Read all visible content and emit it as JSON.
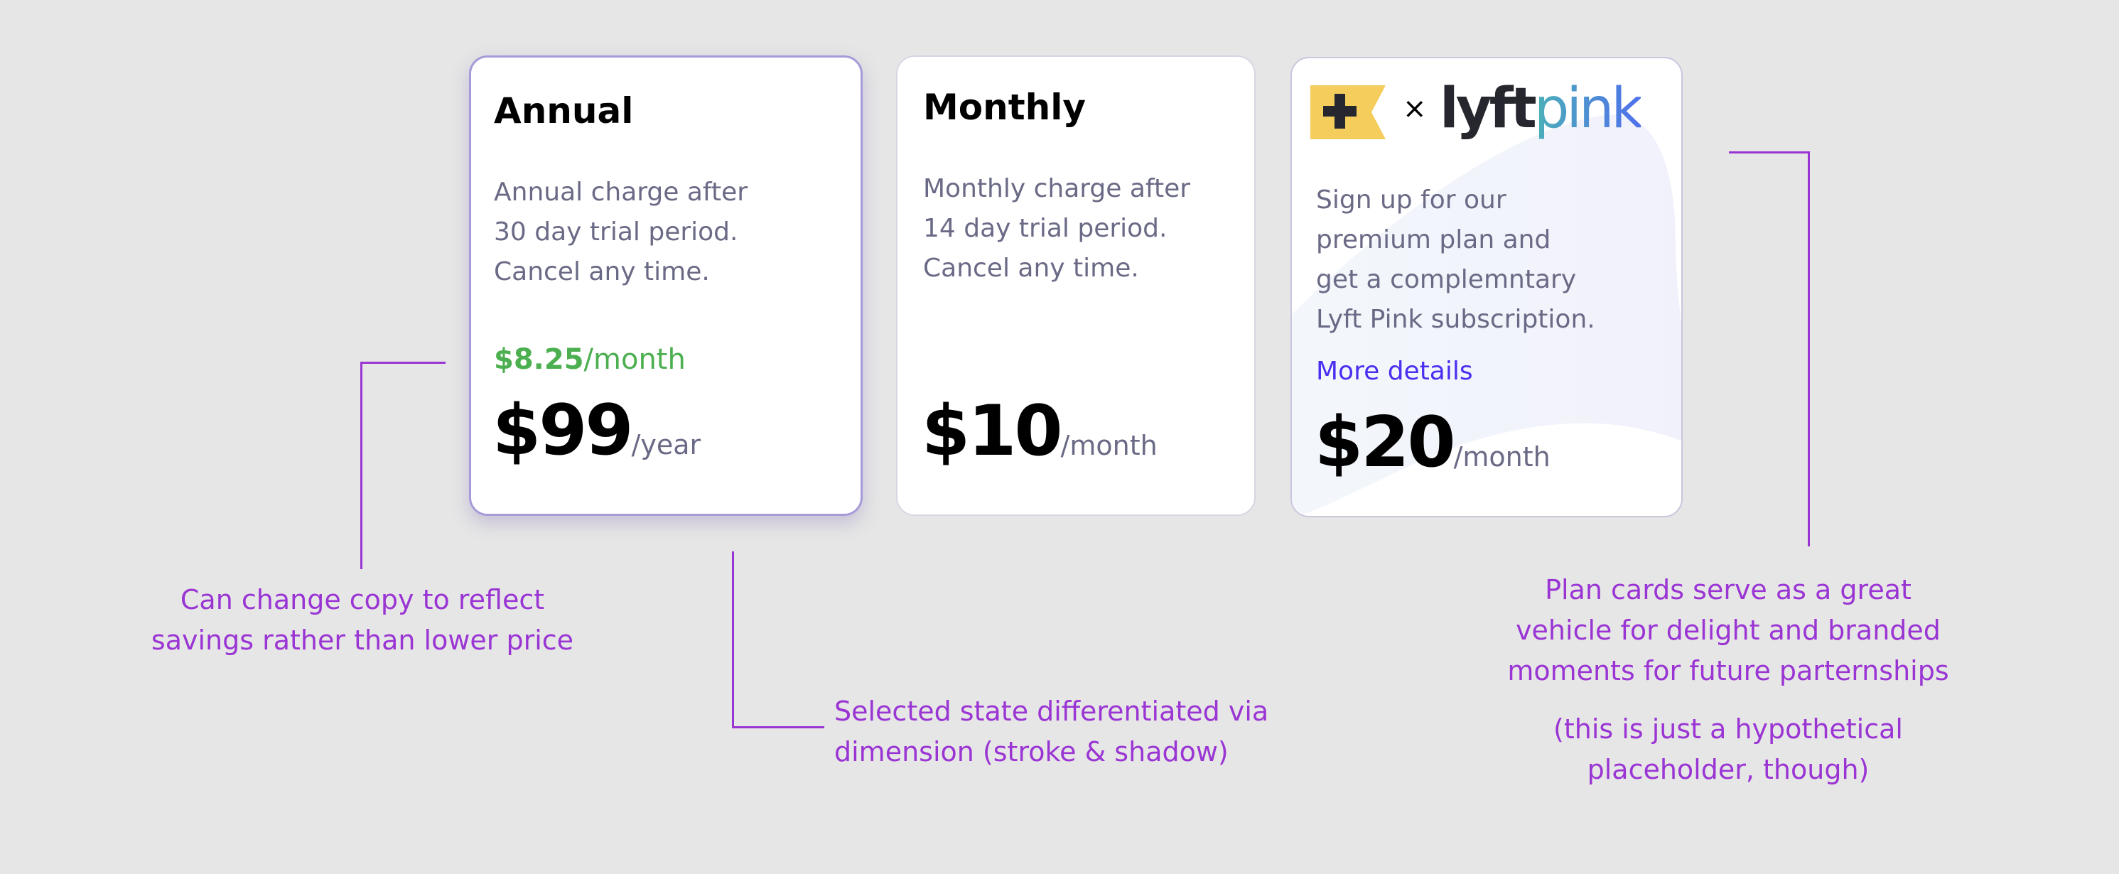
{
  "plans": [
    {
      "title": "Annual",
      "description": "Annual charge after\n30 day trial period.\nCancel any time.",
      "monthly_equiv_amount": "$8.25",
      "monthly_equiv_unit": "/month",
      "price": "$99",
      "unit": "/year",
      "selected": true
    },
    {
      "title": "Monthly",
      "description": "Monthly charge after\n14 day trial period.\nCancel any time.",
      "price": "$10",
      "unit": "/month",
      "selected": false
    },
    {
      "brand_times": "×",
      "brand_partner": "lyftpink",
      "description": "Sign up for our\npremium plan and\nget a complemntary\nLyft Pink subscription.",
      "link": "More details",
      "price": "$20",
      "unit": "/month",
      "selected": false
    }
  ],
  "annotations": {
    "savings": "Can change copy to reflect\nsavings rather than lower price",
    "selected": "Selected state differentiated via\ndimension (stroke & shadow)",
    "branding": "Plan cards serve as a great\nvehicle for delight and branded\nmoments for future parternships",
    "branding_note": "(this is just a hypothetical\nplaceholder, though)"
  },
  "colors": {
    "accent": "#9a35d4",
    "savings_green": "#4caf50",
    "link": "#4a2ff0",
    "selected_stroke": "#a79ad8",
    "brand_yellow": "#f4cd5d"
  }
}
